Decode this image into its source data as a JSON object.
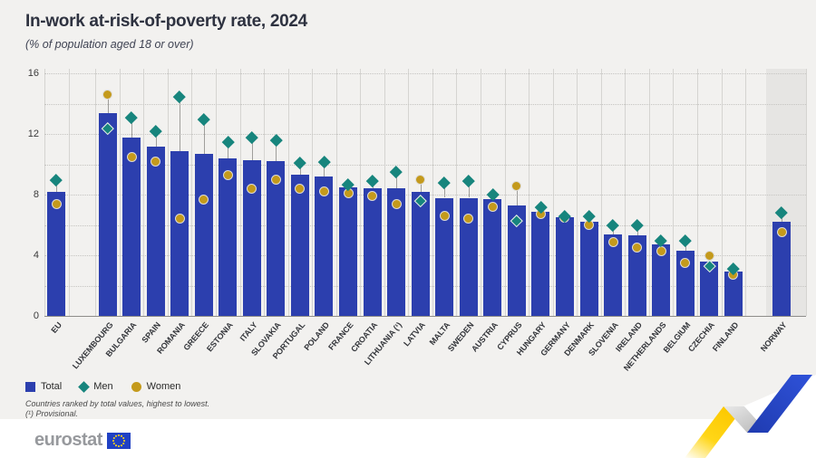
{
  "header": {
    "title": "In-work at-risk-of-poverty rate, 2024",
    "subtitle": "(% of population aged 18 or over)"
  },
  "legend": [
    {
      "key": "total",
      "label": "Total",
      "marker": "square"
    },
    {
      "key": "men",
      "label": "Men",
      "marker": "diamond"
    },
    {
      "key": "women",
      "label": "Women",
      "marker": "circle"
    }
  ],
  "footnotes": [
    "Countries ranked by total values, highest to lowest.",
    "(¹) Provisional."
  ],
  "logo": {
    "wordmark": "eurostat",
    "flag": "eu-flag"
  },
  "colors": {
    "total": "#2c3fae",
    "men": "#17857d",
    "women": "#c49a1c",
    "background": "#f2f1ef",
    "norway_band": "#e6e5e3",
    "grid": "#d5d4d1",
    "baseline": "#8e8d8a",
    "ribbon_yellow": "#ffd617",
    "ribbon_blue": "#2b49c8"
  },
  "chart_data": {
    "type": "bar",
    "title": "In-work at-risk-of-poverty rate, 2024",
    "subtitle": "(% of population aged 18 or over)",
    "xlabel": "",
    "ylabel": "",
    "ylim": [
      0,
      16
    ],
    "yticks": [
      0,
      4,
      8,
      12,
      16
    ],
    "minor_grid_step": 2,
    "grid": true,
    "legend_position": "bottom-left",
    "series_names": [
      "Total",
      "Men",
      "Women"
    ],
    "items": [
      {
        "label": "EU",
        "group": "eu-aggregate",
        "total": 8.2,
        "men": 9.0,
        "women": 7.4
      },
      {
        "label": "LUXEMBOURG",
        "group": "member",
        "total": 13.4,
        "men": 12.4,
        "women": 14.6
      },
      {
        "label": "BULGARIA",
        "group": "member",
        "total": 11.8,
        "men": 13.1,
        "women": 10.5
      },
      {
        "label": "SPAIN",
        "group": "member",
        "total": 11.2,
        "men": 12.2,
        "women": 10.2
      },
      {
        "label": "ROMANIA",
        "group": "member",
        "total": 10.9,
        "men": 14.5,
        "women": 6.4
      },
      {
        "label": "GREECE",
        "group": "member",
        "total": 10.7,
        "men": 13.0,
        "women": 7.7
      },
      {
        "label": "ESTONIA",
        "group": "member",
        "total": 10.4,
        "men": 11.5,
        "women": 9.3
      },
      {
        "label": "ITALY",
        "group": "member",
        "total": 10.3,
        "men": 11.8,
        "women": 8.4
      },
      {
        "label": "SLOVAKIA",
        "group": "member",
        "total": 10.2,
        "men": 11.6,
        "women": 9.0
      },
      {
        "label": "PORTUGAL",
        "group": "member",
        "total": 9.3,
        "men": 10.1,
        "women": 8.4
      },
      {
        "label": "POLAND",
        "group": "member",
        "total": 9.2,
        "men": 10.2,
        "women": 8.2
      },
      {
        "label": "FRANCE",
        "group": "member",
        "total": 8.5,
        "men": 8.7,
        "women": 8.1
      },
      {
        "label": "CROATIA",
        "group": "member",
        "total": 8.4,
        "men": 8.9,
        "women": 7.9
      },
      {
        "label": "LITHUANIA (¹)",
        "group": "member",
        "total": 8.4,
        "men": 9.5,
        "women": 7.4
      },
      {
        "label": "LATVIA",
        "group": "member",
        "total": 8.2,
        "men": 7.6,
        "women": 9.0
      },
      {
        "label": "MALTA",
        "group": "member",
        "total": 7.8,
        "men": 8.8,
        "women": 6.6
      },
      {
        "label": "SWEDEN",
        "group": "member",
        "total": 7.8,
        "men": 8.9,
        "women": 6.4
      },
      {
        "label": "AUSTRIA",
        "group": "member",
        "total": 7.7,
        "men": 8.0,
        "women": 7.2
      },
      {
        "label": "CYPRUS",
        "group": "member",
        "total": 7.3,
        "men": 6.3,
        "women": 8.6
      },
      {
        "label": "HUNGARY",
        "group": "member",
        "total": 6.9,
        "men": 7.2,
        "women": 6.7
      },
      {
        "label": "GERMANY",
        "group": "member",
        "total": 6.5,
        "men": 6.6,
        "women": 6.5
      },
      {
        "label": "DENMARK",
        "group": "member",
        "total": 6.2,
        "men": 6.6,
        "women": 6.0
      },
      {
        "label": "SLOVENIA",
        "group": "member",
        "total": 5.4,
        "men": 6.0,
        "women": 4.9
      },
      {
        "label": "IRELAND",
        "group": "member",
        "total": 5.3,
        "men": 6.0,
        "women": 4.5
      },
      {
        "label": "NETHERLANDS",
        "group": "member",
        "total": 4.7,
        "men": 5.0,
        "women": 4.3
      },
      {
        "label": "BELGIUM",
        "group": "member",
        "total": 4.3,
        "men": 5.0,
        "women": 3.5
      },
      {
        "label": "CZECHIA",
        "group": "member",
        "total": 3.6,
        "men": 3.3,
        "women": 4.0
      },
      {
        "label": "FINLAND",
        "group": "member",
        "total": 2.9,
        "men": 3.1,
        "women": 2.7
      },
      {
        "label": "NORWAY",
        "group": "non-eu",
        "total": 6.2,
        "men": 6.8,
        "women": 5.5
      }
    ]
  }
}
